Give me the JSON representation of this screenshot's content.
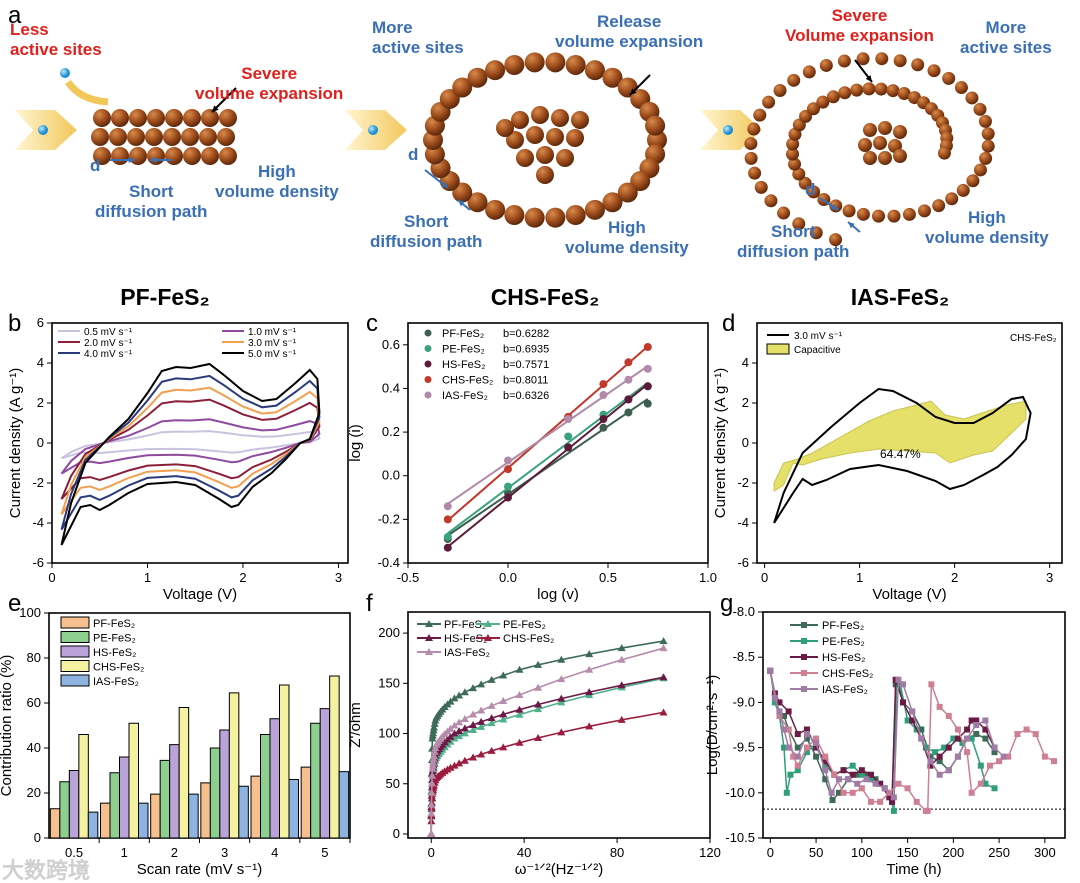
{
  "panel_labels": {
    "a": "a",
    "b": "b",
    "c": "c",
    "d": "d",
    "e": "e",
    "f": "f",
    "g": "g"
  },
  "schematic": {
    "pf": {
      "less_sites": "Less\nactive sites",
      "severe": "Severe\nvolume expansion",
      "d": "d",
      "short": "Short\ndiffusion path",
      "high": "High\nvolume density",
      "title": "PF-FeS₂"
    },
    "chs": {
      "more_sites": "More\nactive sites",
      "release": "Release\nvolume expansion",
      "d": "d",
      "short": "Short\ndiffusion path",
      "high": "High\nvolume density",
      "title": "CHS-FeS₂"
    },
    "ias": {
      "severe": "Severe\nVolume expansion",
      "more_sites": "More\nactive sites",
      "d": "d",
      "short": "Short\ndiffusion path",
      "high": "High\nvolume density",
      "title": "IAS-FeS₂"
    }
  },
  "watermark": "大数跨境",
  "chart_data": [
    {
      "id": "b",
      "type": "line",
      "xlabel": "Voltage (V)",
      "ylabel": "Current density (A g⁻¹)",
      "xlim": [
        0,
        3.1
      ],
      "ylim": [
        -6,
        6
      ],
      "xticks": [
        0,
        1,
        2,
        3
      ],
      "yticks": [
        -6,
        -4,
        -2,
        0,
        2,
        4,
        6
      ],
      "base_curve_5mV": [
        [
          0.1,
          -5.1
        ],
        [
          0.2,
          -3
        ],
        [
          0.35,
          -1
        ],
        [
          0.6,
          0.3
        ],
        [
          0.8,
          1.2
        ],
        [
          1.0,
          2.5
        ],
        [
          1.15,
          3.6
        ],
        [
          1.3,
          3.8
        ],
        [
          1.45,
          3.75
        ],
        [
          1.65,
          3.95
        ],
        [
          1.8,
          3.4
        ],
        [
          2.0,
          2.6
        ],
        [
          2.2,
          2.1
        ],
        [
          2.35,
          2.2
        ],
        [
          2.55,
          3
        ],
        [
          2.7,
          3.65
        ],
        [
          2.78,
          3.2
        ],
        [
          2.8,
          1.5
        ],
        [
          2.7,
          0.2
        ],
        [
          2.6,
          0
        ],
        [
          2.45,
          -0.8
        ],
        [
          2.3,
          -1.5
        ],
        [
          2.1,
          -2.2
        ],
        [
          1.95,
          -3.1
        ],
        [
          1.88,
          -3.2
        ],
        [
          1.75,
          -2.8
        ],
        [
          1.5,
          -2.1
        ],
        [
          1.3,
          -1.95
        ],
        [
          1.0,
          -2.05
        ],
        [
          0.8,
          -2.5
        ],
        [
          0.6,
          -3.1
        ],
        [
          0.5,
          -3.35
        ],
        [
          0.4,
          -3.1
        ],
        [
          0.3,
          -3.2
        ],
        [
          0.1,
          -5.1
        ]
      ],
      "series": [
        {
          "name": "0.5 mV s⁻¹",
          "scale": 0.15,
          "color": "#c9c3e0"
        },
        {
          "name": "1.0 mV s⁻¹",
          "scale": 0.3,
          "color": "#8e4a9e"
        },
        {
          "name": "2.0 mV s⁻¹",
          "scale": 0.55,
          "color": "#8b1f3a"
        },
        {
          "name": "3.0 mV s⁻¹",
          "scale": 0.7,
          "color": "#f0a050"
        },
        {
          "name": "4.0 mV s⁻¹",
          "scale": 0.85,
          "color": "#2a3a7a"
        },
        {
          "name": "5.0 mV s⁻¹",
          "scale": 1.0,
          "color": "#000000"
        }
      ]
    },
    {
      "id": "c",
      "type": "scatter",
      "xlabel": "log (v)",
      "ylabel": "log (i)",
      "xlim": [
        -0.5,
        1.0
      ],
      "ylim": [
        -0.4,
        0.7
      ],
      "xticks": [
        -0.5,
        0.0,
        0.5,
        1.0
      ],
      "yticks": [
        -0.4,
        -0.2,
        0.0,
        0.2,
        0.4,
        0.6
      ],
      "x": [
        -0.301,
        0,
        0.301,
        0.477,
        0.602,
        0.699
      ],
      "series": [
        {
          "name": "PF-FeS₂",
          "b": "b=0.6282",
          "color": "#3d5e4f",
          "values": [
            -0.29,
            -0.08,
            0.13,
            0.22,
            0.29,
            0.33
          ]
        },
        {
          "name": "PE-FeS₂",
          "b": "b=0.6935",
          "color": "#3aa37c",
          "values": [
            -0.28,
            -0.05,
            0.18,
            0.28,
            0.35,
            0.41
          ]
        },
        {
          "name": "HS-FeS₂",
          "b": "b=0.7571",
          "color": "#5c1a3a",
          "values": [
            -0.33,
            -0.1,
            0.13,
            0.26,
            0.35,
            0.41
          ]
        },
        {
          "name": "CHS-FeS₂",
          "b": "b=0.8011",
          "color": "#c0392b",
          "values": [
            -0.2,
            0.03,
            0.27,
            0.42,
            0.52,
            0.59
          ]
        },
        {
          "name": "IAS-FeS₂",
          "b": "b=0.6326",
          "color": "#b08aa8",
          "values": [
            -0.14,
            0.07,
            0.26,
            0.37,
            0.44,
            0.49
          ]
        }
      ]
    },
    {
      "id": "d",
      "type": "area",
      "xlabel": "Voltage (V)",
      "ylabel": "Current density (A g⁻¹)",
      "xlim": [
        -0.08,
        3.13
      ],
      "ylim": [
        -6,
        6
      ],
      "xticks": [
        0,
        1,
        2,
        3
      ],
      "yticks": [
        -6,
        -4,
        -2,
        0,
        2,
        4
      ],
      "sample": "CHS-FeS₂",
      "annotation": "64.47%",
      "cv": {
        "name": "3.0 mV s⁻¹",
        "color": "#000000",
        "points": [
          [
            0.1,
            -4
          ],
          [
            0.2,
            -2.5
          ],
          [
            0.4,
            -0.5
          ],
          [
            0.7,
            0.8
          ],
          [
            1.0,
            2
          ],
          [
            1.2,
            2.7
          ],
          [
            1.35,
            2.6
          ],
          [
            1.6,
            2.0
          ],
          [
            1.8,
            1.3
          ],
          [
            2.0,
            1.0
          ],
          [
            2.2,
            1.0
          ],
          [
            2.4,
            1.5
          ],
          [
            2.6,
            2.2
          ],
          [
            2.72,
            2.3
          ],
          [
            2.8,
            1.5
          ],
          [
            2.75,
            0.2
          ],
          [
            2.6,
            -0.6
          ],
          [
            2.45,
            -1.2
          ],
          [
            2.3,
            -1.6
          ],
          [
            2.1,
            -2.1
          ],
          [
            1.95,
            -2.3
          ],
          [
            1.8,
            -1.9
          ],
          [
            1.5,
            -1.4
          ],
          [
            1.2,
            -1.1
          ],
          [
            0.9,
            -1.3
          ],
          [
            0.65,
            -1.85
          ],
          [
            0.5,
            -2.1
          ],
          [
            0.4,
            -1.8
          ],
          [
            0.3,
            -2.5
          ],
          [
            0.1,
            -4
          ]
        ]
      },
      "capacitive": {
        "name": "Capacitive",
        "color": "#e4e06a",
        "points": [
          [
            0.1,
            -2
          ],
          [
            0.2,
            -1
          ],
          [
            0.35,
            -0.8
          ],
          [
            0.5,
            -0.5
          ],
          [
            0.8,
            0.3
          ],
          [
            1.1,
            1.1
          ],
          [
            1.35,
            1.6
          ],
          [
            1.6,
            1.9
          ],
          [
            1.75,
            2.1
          ],
          [
            1.9,
            1.4
          ],
          [
            2.1,
            1.2
          ],
          [
            2.35,
            1.6
          ],
          [
            2.55,
            1.9
          ],
          [
            2.75,
            2.1
          ],
          [
            2.75,
            1.2
          ],
          [
            2.6,
            0.5
          ],
          [
            2.4,
            -0.4
          ],
          [
            2.2,
            -0.6
          ],
          [
            1.95,
            -1.0
          ],
          [
            1.8,
            -0.5
          ],
          [
            1.5,
            -0.4
          ],
          [
            1.2,
            -0.3
          ],
          [
            0.9,
            -0.5
          ],
          [
            0.6,
            -0.8
          ],
          [
            0.4,
            -1.1
          ],
          [
            0.3,
            -1.0
          ],
          [
            0.2,
            -2.1
          ],
          [
            0.1,
            -2.4
          ]
        ]
      }
    },
    {
      "id": "e",
      "type": "bar",
      "xlabel": "Scan rate (mV s⁻¹)",
      "ylabel": "Contribution ratio (%)",
      "ylim": [
        0,
        100
      ],
      "yticks": [
        0,
        20,
        40,
        60,
        80,
        100
      ],
      "categories": [
        "0.5",
        "1",
        "2",
        "3",
        "4",
        "5"
      ],
      "series": [
        {
          "name": "PF-FeS₂",
          "color": "#f5c08e",
          "values": [
            13,
            15.5,
            19.5,
            24.5,
            27.5,
            31.5
          ]
        },
        {
          "name": "PE-FeS₂",
          "color": "#8ccf8e",
          "values": [
            25,
            29,
            34.5,
            40,
            46,
            51
          ]
        },
        {
          "name": "HS-FeS₂",
          "color": "#b9a3d8",
          "values": [
            30,
            36,
            41.5,
            48,
            53,
            57.5
          ]
        },
        {
          "name": "CHS-FeS₂",
          "color": "#f4f1a0",
          "values": [
            46,
            51,
            58,
            64.5,
            68,
            72
          ]
        },
        {
          "name": "IAS-FeS₂",
          "color": "#8fb3e0",
          "values": [
            11.5,
            15.5,
            19.5,
            23,
            26,
            29.5
          ]
        }
      ]
    },
    {
      "id": "f",
      "type": "line",
      "xlabel": "ω⁻¹ᐟ²(Hz⁻¹ᐟ²)",
      "ylabel": "Z'/ohm",
      "xlim": [
        -10,
        120
      ],
      "ylim": [
        -4,
        221
      ],
      "xticks": [
        0,
        40,
        80,
        120
      ],
      "yticks": [
        0,
        50,
        100,
        150,
        200
      ],
      "x_anchor": [
        0,
        0.5,
        2,
        10,
        40,
        100
      ],
      "series": [
        {
          "name": "PF-FeS₂",
          "color": "#3d6b58",
          "values": [
            0,
            95,
            115,
            135,
            165,
            192
          ]
        },
        {
          "name": "PE-FeS₂",
          "color": "#4fb08a",
          "values": [
            0,
            55,
            75,
            95,
            120,
            155
          ]
        },
        {
          "name": "HS-FeS₂",
          "color": "#6b1a45",
          "values": [
            0,
            60,
            80,
            100,
            125,
            156
          ]
        },
        {
          "name": "CHS-FeS₂",
          "color": "#9b1c3c",
          "values": [
            0,
            40,
            55,
            68,
            92,
            121
          ]
        },
        {
          "name": "IAS-FeS₂",
          "color": "#b58cab",
          "values": [
            0,
            65,
            88,
            108,
            140,
            185
          ]
        }
      ]
    },
    {
      "id": "g",
      "type": "line",
      "xlabel": "Time (h)",
      "ylabel": "Log(D/cm²·s⁻¹)",
      "xlim": [
        -8,
        322
      ],
      "ylim": [
        -10.5,
        -8
      ],
      "xticks": [
        0,
        50,
        100,
        150,
        200,
        250,
        300
      ],
      "yticks": [
        -10.5,
        -10.0,
        -9.5,
        -9.0,
        -8.5,
        -8.0
      ],
      "reference_line": -10.18,
      "series": [
        {
          "name": "PF-FeS₂",
          "color": "#3d6b58",
          "x": [
            0,
            5,
            10,
            15,
            20,
            30,
            40,
            50,
            60,
            68,
            75,
            85,
            95,
            105,
            115,
            125,
            133,
            137,
            140,
            145,
            155,
            165,
            175,
            185,
            195,
            205,
            215,
            225,
            235,
            245
          ],
          "values": [
            -8.65,
            -8.95,
            -9.1,
            -9.15,
            -9.3,
            -9.5,
            -9.4,
            -9.6,
            -9.85,
            -10.08,
            -10.0,
            -9.85,
            -9.8,
            -9.8,
            -9.85,
            -9.95,
            -10.1,
            -8.8,
            -8.8,
            -9.0,
            -9.1,
            -9.3,
            -9.6,
            -9.65,
            -9.75,
            -9.6,
            -9.4,
            -9.35,
            -9.4,
            -9.55
          ]
        },
        {
          "name": "PE-FeS₂",
          "color": "#2f9e7a",
          "x": [
            0,
            5,
            10,
            15,
            18,
            22,
            30,
            40,
            50,
            60,
            70,
            80,
            90,
            100,
            110,
            120,
            130,
            135,
            138,
            142,
            150,
            160,
            170,
            180,
            190,
            200,
            210,
            220,
            230,
            235,
            245
          ],
          "values": [
            -8.65,
            -9.0,
            -9.15,
            -9.5,
            -10.0,
            -9.8,
            -9.75,
            -9.55,
            -9.45,
            -9.7,
            -9.8,
            -9.75,
            -9.7,
            -9.8,
            -9.85,
            -9.9,
            -10.0,
            -10.2,
            -8.75,
            -8.8,
            -9.2,
            -9.3,
            -9.5,
            -9.55,
            -9.5,
            -9.4,
            -9.45,
            -9.4,
            -9.7,
            -9.9,
            -9.95
          ]
        },
        {
          "name": "HS-FeS₂",
          "color": "#6b1a45",
          "x": [
            0,
            5,
            10,
            20,
            30,
            40,
            50,
            60,
            70,
            80,
            90,
            100,
            110,
            120,
            130,
            133,
            137,
            145,
            155,
            165,
            175,
            185,
            195,
            205,
            215,
            220,
            225,
            235,
            245
          ],
          "values": [
            -8.65,
            -8.9,
            -9.0,
            -9.1,
            -9.35,
            -9.3,
            -9.5,
            -9.65,
            -9.8,
            -9.75,
            -9.8,
            -9.75,
            -9.8,
            -9.9,
            -10.05,
            -10.1,
            -8.75,
            -9.0,
            -9.2,
            -9.4,
            -9.7,
            -9.6,
            -9.5,
            -9.4,
            -9.3,
            -9.2,
            -9.2,
            -9.3,
            -9.5
          ]
        },
        {
          "name": "CHS-FeS₂",
          "color": "#cf7f92",
          "x": [
            0,
            10,
            20,
            25,
            30,
            40,
            50,
            60,
            70,
            80,
            90,
            100,
            110,
            120,
            130,
            140,
            150,
            160,
            170,
            172,
            176,
            185,
            195,
            205,
            215,
            220,
            230,
            240,
            250,
            260,
            270,
            280,
            290,
            300,
            310
          ],
          "values": [
            -8.65,
            -9.15,
            -9.3,
            -9.6,
            -9.7,
            -9.5,
            -9.4,
            -9.6,
            -9.8,
            -10.0,
            -10.0,
            -9.95,
            -10.1,
            -10.1,
            -10.0,
            -9.9,
            -9.95,
            -10.1,
            -10.2,
            -10.2,
            -8.8,
            -9.05,
            -9.15,
            -9.3,
            -9.55,
            -10.0,
            -9.9,
            -9.7,
            -9.65,
            -9.6,
            -9.35,
            -9.3,
            -9.35,
            -9.6,
            -9.65
          ]
        },
        {
          "name": "IAS-FeS₂",
          "color": "#a07ca5",
          "x": [
            0,
            5,
            10,
            15,
            20,
            30,
            40,
            50,
            60,
            67,
            75,
            85,
            95,
            105,
            115,
            125,
            135,
            140,
            145,
            155,
            165,
            175,
            185,
            195,
            205,
            215,
            225,
            235,
            245,
            255
          ],
          "values": [
            -8.65,
            -8.95,
            -9.1,
            -9.3,
            -9.5,
            -9.6,
            -9.35,
            -9.45,
            -9.75,
            -10.0,
            -9.85,
            -9.85,
            -9.9,
            -9.85,
            -9.9,
            -9.95,
            -10.05,
            -8.75,
            -8.8,
            -9.1,
            -9.4,
            -9.65,
            -9.8,
            -9.75,
            -9.6,
            -9.4,
            -9.25,
            -9.2,
            -9.5,
            -9.6
          ]
        }
      ]
    }
  ]
}
